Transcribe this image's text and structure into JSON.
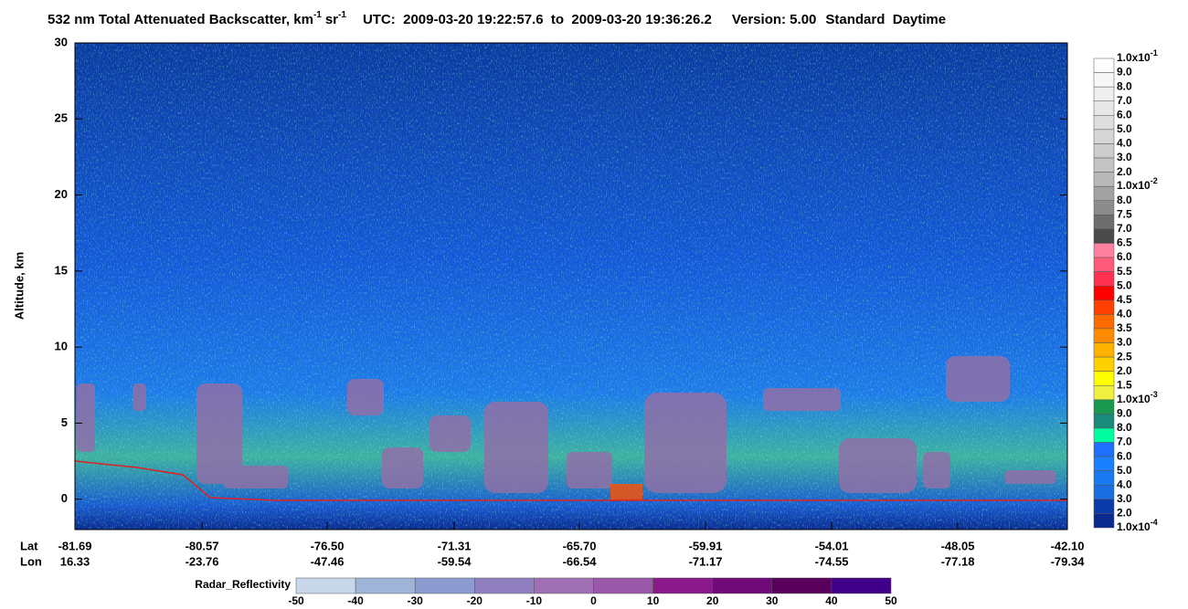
{
  "chart_data": {
    "type": "heatmap",
    "title": {
      "main": "532 nm Total Attenuated Backscatter, km",
      "exp1": "-1",
      "unit2": "sr",
      "exp2": "-1"
    },
    "time_range": "UTC:  2009-03-20 19:22:57.6  to  2009-03-20 19:36:26.2",
    "version": "Version: 5.00",
    "mode": "Standard  Daytime",
    "y_label": "Altitude, km",
    "ylim": [
      -2,
      30
    ],
    "yticks": [
      0,
      5,
      10,
      15,
      20,
      25,
      30
    ],
    "x_axis": {
      "lat_label": "Lat",
      "lon_label": "Lon",
      "lat": [
        "-81.69",
        "-80.57",
        "-76.50",
        "-71.31",
        "-65.70",
        "-59.91",
        "-54.01",
        "-48.05",
        "-42.10"
      ],
      "lon": [
        "16.33",
        "-23.76",
        "-47.46",
        "-59.54",
        "-66.54",
        "-71.17",
        "-74.55",
        "-77.18",
        "-79.34"
      ]
    },
    "colorbar": {
      "labels": [
        {
          "mantissa": "1.0x10",
          "exponent": "-1"
        },
        "9.0",
        "8.0",
        "7.0",
        "6.0",
        "5.0",
        "4.0",
        "3.0",
        "2.0",
        {
          "mantissa": "1.0x10",
          "exponent": "-2"
        },
        "8.0",
        "7.5",
        "7.0",
        "6.5",
        "6.0",
        "5.5",
        "5.0",
        "4.5",
        "4.0",
        "3.5",
        "3.0",
        "2.5",
        "2.0",
        "1.5",
        {
          "mantissa": "1.0x10",
          "exponent": "-3"
        },
        "9.0",
        "8.0",
        "7.0",
        "6.0",
        "5.0",
        "4.0",
        "3.0",
        "2.0",
        {
          "mantissa": "1.0x10",
          "exponent": "-4"
        }
      ],
      "colors": [
        "#ffffff",
        "#f7f7f7",
        "#efefef",
        "#e7e7e7",
        "#dedede",
        "#d6d6d6",
        "#cdcdcd",
        "#c4c4c4",
        "#b9b9b9",
        "#a2a2a2",
        "#8c8c8c",
        "#6e6e6e",
        "#4a4a4a",
        "#ff80a0",
        "#ff5a7a",
        "#ff3050",
        "#ff0000",
        "#ff4000",
        "#ff6a00",
        "#ff8c00",
        "#ffb000",
        "#ffd000",
        "#ffff00",
        "#f0f040",
        "#1a9850",
        "#1a8a7a",
        "#00ffa0",
        "#1e6fff",
        "#1a80ff",
        "#1a78f0",
        "#1a6ee0",
        "#0a3aa8",
        "#0a2a90"
      ]
    },
    "radar_bar": {
      "label": "Radar_Reflectivity",
      "ticks": [
        -50,
        -40,
        -30,
        -20,
        -10,
        0,
        10,
        20,
        30,
        40,
        50
      ],
      "colors": [
        "#c8d8ea",
        "#a0b4d8",
        "#8c9cd0",
        "#9080c0",
        "#a070b4",
        "#9a58a8",
        "#8a1a8a",
        "#700a78",
        "#58005c",
        "#40008a"
      ]
    }
  }
}
